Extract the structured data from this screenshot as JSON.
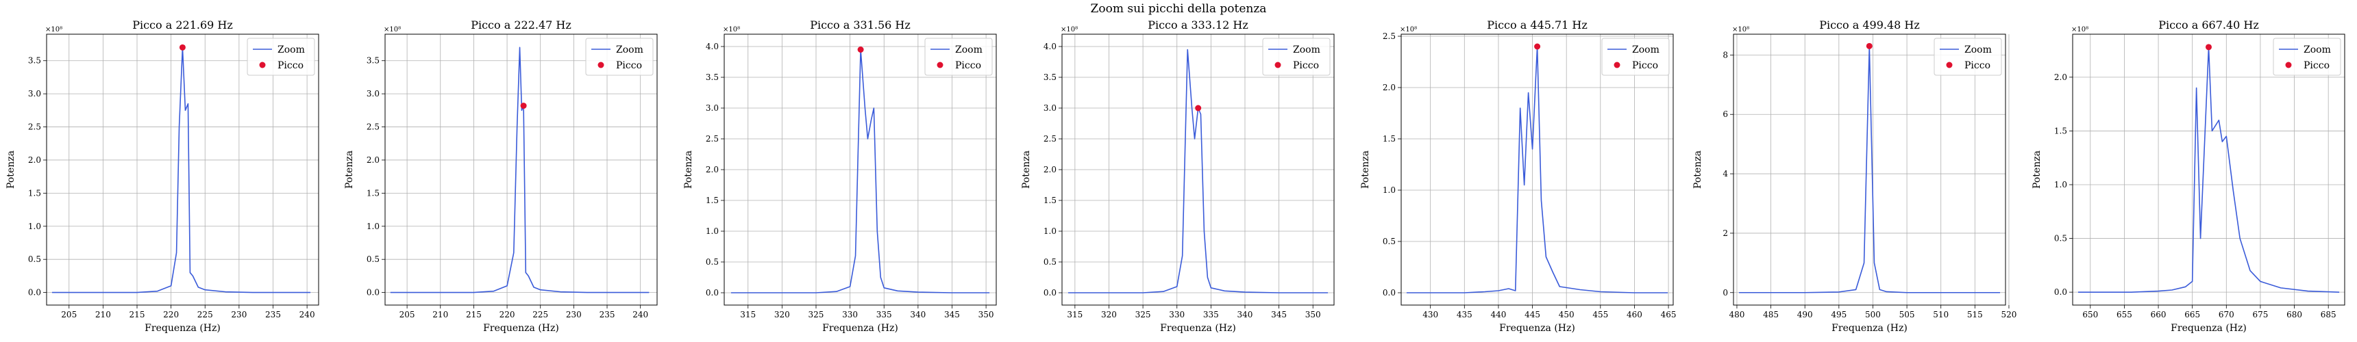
{
  "title": "Zoom sui picchi della potenza",
  "legend_labels": {
    "line": "Zoom",
    "marker": "Picco"
  },
  "colors": {
    "line": "#3a5bd9",
    "marker": "#e0102f",
    "grid": "#b0b0b0"
  },
  "chart_data": [
    {
      "type": "line",
      "title": "Picco a 221.69 Hz",
      "xlabel": "Frequenza (Hz)",
      "ylabel": "Potenza",
      "exponent_label": "×10⁸",
      "xlim": [
        201.7,
        241.7
      ],
      "ylim": [
        -0.19,
        3.9
      ],
      "xticks": [
        205,
        210,
        215,
        220,
        225,
        230,
        235,
        240
      ],
      "yticks": [
        0.0,
        0.5,
        1.0,
        1.5,
        2.0,
        2.5,
        3.0,
        3.5
      ],
      "grid": true,
      "legend_position": "top-right",
      "series": [
        {
          "name": "Zoom",
          "x": [
            202.5,
            205,
            210,
            215,
            218,
            220,
            220.8,
            221.2,
            221.69,
            222.1,
            222.5,
            222.8,
            223.2,
            224,
            225,
            228,
            232,
            236,
            240.5
          ],
          "y": [
            0.0,
            0.0,
            0.0,
            0.0,
            0.02,
            0.1,
            0.6,
            2.5,
            3.7,
            2.75,
            2.85,
            0.3,
            0.25,
            0.08,
            0.04,
            0.01,
            0.0,
            0.0,
            0.0
          ]
        },
        {
          "name": "Picco",
          "x": [
            221.69
          ],
          "y": [
            3.7
          ]
        }
      ]
    },
    {
      "type": "line",
      "title": "Picco a 222.47 Hz",
      "xlabel": "Frequenza (Hz)",
      "ylabel": "Potenza",
      "exponent_label": "×10⁸",
      "xlim": [
        201.7,
        242.5
      ],
      "ylim": [
        -0.19,
        3.9
      ],
      "xticks": [
        205,
        210,
        215,
        220,
        225,
        230,
        235,
        240
      ],
      "yticks": [
        0.0,
        0.5,
        1.0,
        1.5,
        2.0,
        2.5,
        3.0,
        3.5
      ],
      "grid": true,
      "legend_position": "top-right",
      "series": [
        {
          "name": "Zoom",
          "x": [
            202.5,
            205,
            210,
            215,
            218,
            220,
            221,
            221.5,
            221.9,
            222.2,
            222.47,
            222.8,
            223.2,
            224,
            225,
            228,
            232,
            236,
            241.3
          ],
          "y": [
            0.0,
            0.0,
            0.0,
            0.0,
            0.02,
            0.1,
            0.6,
            2.5,
            3.7,
            2.75,
            2.82,
            0.3,
            0.25,
            0.08,
            0.04,
            0.01,
            0.0,
            0.0,
            0.0
          ]
        },
        {
          "name": "Picco",
          "x": [
            222.47
          ],
          "y": [
            2.82
          ]
        }
      ]
    },
    {
      "type": "line",
      "title": "Picco a 331.56 Hz",
      "xlabel": "Frequenza (Hz)",
      "ylabel": "Potenza",
      "exponent_label": "×10⁸",
      "xlim": [
        311.5,
        351.5
      ],
      "ylim": [
        -0.2,
        4.2
      ],
      "xticks": [
        315,
        320,
        325,
        330,
        335,
        340,
        345,
        350
      ],
      "yticks": [
        0.0,
        0.5,
        1.0,
        1.5,
        2.0,
        2.5,
        3.0,
        3.5,
        4.0
      ],
      "grid": true,
      "legend_position": "top-right",
      "series": [
        {
          "name": "Zoom",
          "x": [
            312.5,
            315,
            320,
            325,
            328,
            330,
            330.8,
            331.56,
            332.2,
            332.6,
            333.1,
            333.5,
            334,
            334.5,
            335,
            337,
            340,
            345,
            350.5
          ],
          "y": [
            0.0,
            0.0,
            0.0,
            0.0,
            0.02,
            0.1,
            0.6,
            3.95,
            3.0,
            2.5,
            2.8,
            3.0,
            1.0,
            0.25,
            0.08,
            0.03,
            0.01,
            0.0,
            0.0
          ]
        },
        {
          "name": "Picco",
          "x": [
            331.56
          ],
          "y": [
            3.95
          ]
        }
      ]
    },
    {
      "type": "line",
      "title": "Picco a 333.12 Hz",
      "xlabel": "Frequenza (Hz)",
      "ylabel": "Potenza",
      "exponent_label": "×10⁸",
      "xlim": [
        313.1,
        353.1
      ],
      "ylim": [
        -0.2,
        4.2
      ],
      "xticks": [
        315,
        320,
        325,
        330,
        335,
        340,
        345,
        350
      ],
      "yticks": [
        0.0,
        0.5,
        1.0,
        1.5,
        2.0,
        2.5,
        3.0,
        3.5,
        4.0
      ],
      "grid": true,
      "legend_position": "top-right",
      "series": [
        {
          "name": "Zoom",
          "x": [
            314,
            316,
            320,
            325,
            328,
            330,
            330.8,
            331.56,
            332.2,
            332.6,
            333.12,
            333.5,
            334,
            334.5,
            335,
            337,
            340,
            345,
            352.2
          ],
          "y": [
            0.0,
            0.0,
            0.0,
            0.0,
            0.02,
            0.1,
            0.6,
            3.95,
            3.0,
            2.5,
            3.0,
            2.9,
            1.0,
            0.25,
            0.08,
            0.03,
            0.01,
            0.0,
            0.0
          ]
        },
        {
          "name": "Picco",
          "x": [
            333.12
          ],
          "y": [
            3.0
          ]
        }
      ]
    },
    {
      "type": "line",
      "title": "Picco a 445.71 Hz",
      "xlabel": "Frequenza (Hz)",
      "ylabel": "Potenza",
      "exponent_label": "×10⁸",
      "xlim": [
        425.7,
        465.7
      ],
      "ylim": [
        -0.12,
        2.52
      ],
      "xticks": [
        430,
        435,
        440,
        445,
        450,
        455,
        460,
        465
      ],
      "yticks": [
        0.0,
        0.5,
        1.0,
        1.5,
        2.0,
        2.5
      ],
      "grid": true,
      "legend_position": "top-right",
      "series": [
        {
          "name": "Zoom",
          "x": [
            426.5,
            430,
            435,
            438,
            440,
            441.5,
            442.5,
            443.2,
            443.8,
            444.4,
            445.0,
            445.71,
            446.3,
            447,
            448,
            449,
            450,
            452,
            455,
            460,
            464.9
          ],
          "y": [
            0.0,
            0.0,
            0.0,
            0.01,
            0.02,
            0.04,
            0.02,
            1.8,
            1.05,
            1.95,
            1.4,
            2.4,
            0.9,
            0.35,
            0.2,
            0.06,
            0.05,
            0.03,
            0.01,
            0.0,
            0.0
          ]
        },
        {
          "name": "Picco",
          "x": [
            445.71
          ],
          "y": [
            2.4
          ]
        }
      ]
    },
    {
      "type": "line",
      "title": "Picco a 499.48 Hz",
      "xlabel": "Frequenza (Hz)",
      "ylabel": "Potenza",
      "exponent_label": "×10⁸",
      "xlim": [
        479.5,
        519.5
      ],
      "ylim": [
        -0.42,
        8.7
      ],
      "xticks": [
        480,
        485,
        490,
        495,
        500,
        505,
        510,
        515,
        520
      ],
      "yticks": [
        0,
        2,
        4,
        6,
        8
      ],
      "grid": true,
      "legend_position": "top-right",
      "series": [
        {
          "name": "Zoom",
          "x": [
            480.3,
            485,
            490,
            495,
            497.5,
            498.7,
            499.48,
            500.2,
            501,
            502,
            505,
            510,
            518.7
          ],
          "y": [
            0.0,
            0.0,
            0.0,
            0.02,
            0.1,
            1.0,
            8.3,
            1.0,
            0.1,
            0.03,
            0.0,
            0.0,
            0.0
          ]
        },
        {
          "name": "Picco",
          "x": [
            499.48
          ],
          "y": [
            8.3
          ]
        }
      ]
    },
    {
      "type": "line",
      "title": "Picco a 667.40 Hz",
      "xlabel": "Frequenza (Hz)",
      "ylabel": "Potenza",
      "exponent_label": "×10⁸",
      "xlim": [
        647.4,
        687.4
      ],
      "ylim": [
        -0.12,
        2.4
      ],
      "xticks": [
        650,
        655,
        660,
        665,
        670,
        675,
        680,
        685
      ],
      "yticks": [
        0.0,
        0.5,
        1.0,
        1.5,
        2.0
      ],
      "grid": true,
      "legend_position": "top-right",
      "series": [
        {
          "name": "Zoom",
          "x": [
            648.2,
            652,
            656,
            660,
            662,
            664,
            665,
            665.6,
            666.2,
            667.4,
            667.9,
            668.4,
            668.9,
            669.4,
            670,
            671,
            672,
            673.5,
            675,
            678,
            682,
            686.6
          ],
          "y": [
            0.0,
            0.0,
            0.0,
            0.01,
            0.02,
            0.05,
            0.1,
            1.9,
            0.5,
            2.28,
            1.5,
            1.55,
            1.6,
            1.4,
            1.45,
            0.95,
            0.5,
            0.2,
            0.1,
            0.04,
            0.01,
            0.0
          ]
        },
        {
          "name": "Picco",
          "x": [
            667.4
          ],
          "y": [
            2.28
          ]
        }
      ]
    }
  ]
}
